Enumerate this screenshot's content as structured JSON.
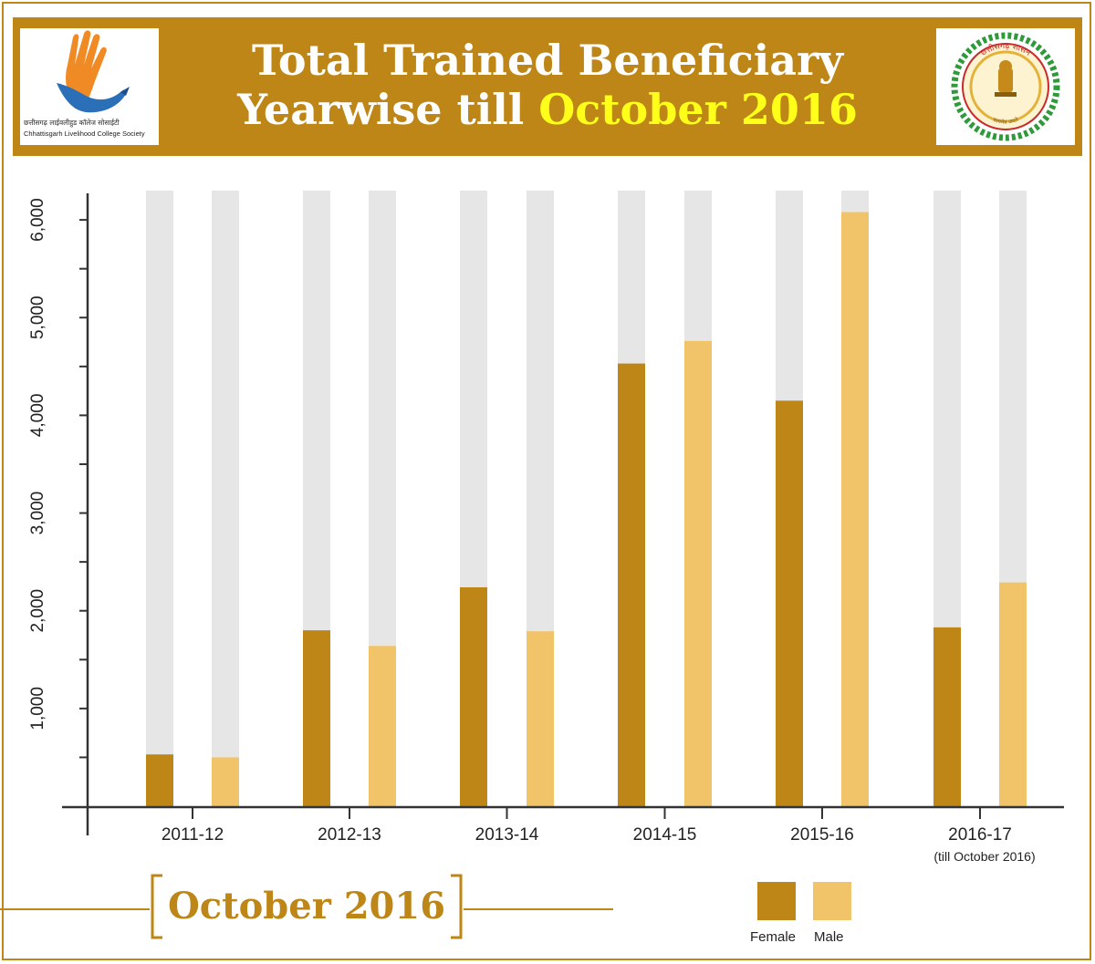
{
  "header": {
    "title_line1": "Total Trained Beneficiary",
    "title_line2_prefix": "Yearwise till ",
    "title_line2_highlight": "October 2016",
    "left_logo_hindi": "छत्तीसगढ़ लाईवलीहुड कॉलेज सोसाईटी",
    "left_logo_english": "Chhattisgarh Livelihood College Society",
    "right_logo_text_top": "छत्तीसगढ़ शासन",
    "right_logo_text_bottom": "सत्यमेव जयते"
  },
  "footer": {
    "title": "October 2016",
    "legend_female": "Female",
    "legend_male": "Male"
  },
  "colors": {
    "gold": "#bd8616",
    "female": "#bd8616",
    "male": "#f2c46a",
    "track": "#e6e6e7",
    "highlight": "#ffff1a"
  },
  "chart_data": {
    "type": "bar",
    "categories": [
      "2011-12",
      "2012-13",
      "2013-14",
      "2014-15",
      "2015-16",
      "2016-17"
    ],
    "category_sublabels": [
      "",
      "",
      "",
      "",
      "",
      "(till October 2016)"
    ],
    "series": [
      {
        "name": "Female",
        "values": [
          530,
          1800,
          2240,
          4530,
          4150,
          1830
        ]
      },
      {
        "name": "Male",
        "values": [
          500,
          1640,
          1790,
          4760,
          6080,
          2290
        ]
      }
    ],
    "background_max": 6300,
    "yticks": [
      1000,
      2000,
      3000,
      4000,
      5000,
      6000
    ],
    "ytick_labels": [
      "1,000",
      "2,000",
      "3,000",
      "4,000",
      "5,000",
      "6,000"
    ],
    "ylim": [
      0,
      6300
    ],
    "title": "Total Trained Beneficiary Yearwise till October 2016",
    "xlabel": "",
    "ylabel": "",
    "legend": "bottom-right",
    "grid": false
  }
}
